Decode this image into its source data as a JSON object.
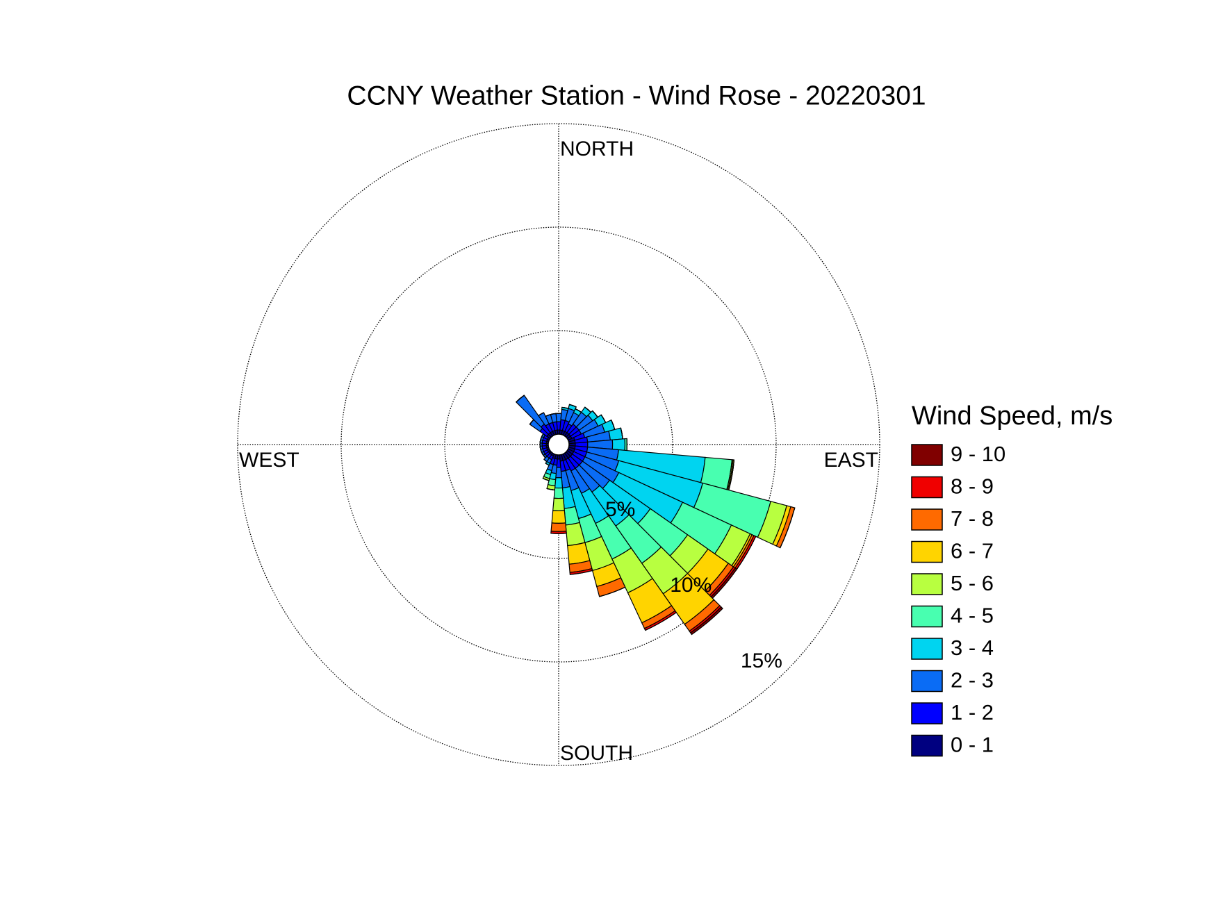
{
  "chart_data": {
    "type": "windrose",
    "title": "CCNY Weather Station - Wind Rose - 20220301",
    "legend_title": "Wind Speed, m/s",
    "direction_labels": {
      "north": "NORTH",
      "east": "EAST",
      "south": "SOUTH",
      "west": "WEST"
    },
    "x": [
      0,
      10,
      20,
      30,
      40,
      50,
      60,
      70,
      80,
      90,
      100,
      110,
      120,
      130,
      140,
      150,
      160,
      170,
      180,
      190,
      200,
      210,
      220,
      230,
      240,
      250,
      260,
      270,
      280,
      290,
      300,
      310,
      320,
      330,
      340,
      350
    ],
    "ylim": [
      0,
      15
    ],
    "yticks": [
      {
        "value": 5,
        "label": "5%"
      },
      {
        "value": 10,
        "label": "10%"
      },
      {
        "value": 15,
        "label": "15%"
      }
    ],
    "grid": true,
    "series": [
      {
        "name": "0 - 1",
        "color": "#000080",
        "values": [
          0.2,
          0.2,
          0.2,
          0.2,
          0.2,
          0.2,
          0.2,
          0.3,
          0.3,
          0.3,
          0.3,
          0.3,
          0.3,
          0.3,
          0.3,
          0.3,
          0.3,
          0.3,
          0.2,
          0.2,
          0.2,
          0.1,
          0.1,
          0.1,
          0.1,
          0.1,
          0.1,
          0.1,
          0.1,
          0.1,
          0.1,
          0.2,
          0.2,
          0.2,
          0.2,
          0.2
        ]
      },
      {
        "name": "1 - 2",
        "color": "#0000ff",
        "values": [
          0.4,
          0.5,
          0.5,
          0.4,
          0.5,
          0.5,
          0.5,
          0.5,
          0.6,
          0.6,
          0.6,
          0.6,
          0.6,
          0.6,
          0.6,
          0.6,
          0.5,
          0.5,
          0.4,
          0.3,
          0.3,
          0.2,
          0.2,
          0.2,
          0.2,
          0.2,
          0.2,
          0.2,
          0.2,
          0.2,
          0.2,
          0.4,
          0.5,
          0.4,
          0.4,
          0.4
        ]
      },
      {
        "name": "2 - 3",
        "color": "#0a6cf5",
        "values": [
          0.4,
          0.5,
          0.6,
          0.6,
          0.7,
          0.8,
          0.9,
          1.0,
          1.1,
          1.2,
          1.5,
          1.6,
          1.8,
          1.6,
          1.4,
          1.2,
          1.0,
          0.8,
          0.5,
          0.4,
          0.3,
          0.2,
          0.2,
          0.1,
          0.1,
          0.1,
          0.1,
          0.1,
          0.1,
          0.1,
          0.1,
          0.6,
          1.7,
          0.6,
          0.4,
          0.4
        ]
      },
      {
        "name": "3 - 4",
        "color": "#00d4f0",
        "values": [
          0,
          0.1,
          0.2,
          0.2,
          0.3,
          0.3,
          0.4,
          0.5,
          0.6,
          0.6,
          4.2,
          4.2,
          3.4,
          2.4,
          2.0,
          1.6,
          1.4,
          1.0,
          0.5,
          0.3,
          0.2,
          0.1,
          0,
          0,
          0,
          0,
          0,
          0,
          0,
          0,
          0,
          0,
          0,
          0,
          0,
          0
        ]
      },
      {
        "name": "4 - 5",
        "color": "#48ffb0",
        "values": [
          0,
          0,
          0,
          0,
          0,
          0,
          0,
          0,
          0,
          0.1,
          1.3,
          3.4,
          2.6,
          2.2,
          2.2,
          1.9,
          1.2,
          0.8,
          0.5,
          0.3,
          0.2,
          0,
          0,
          0,
          0,
          0,
          0,
          0,
          0,
          0,
          0,
          0,
          0,
          0,
          0,
          0
        ]
      },
      {
        "name": "5 - 6",
        "color": "#b8ff40",
        "values": [
          0,
          0,
          0,
          0,
          0,
          0,
          0,
          0,
          0,
          0,
          0.05,
          0.8,
          1.0,
          1.2,
          1.8,
          1.8,
          1.4,
          1.0,
          0.6,
          0.2,
          0.1,
          0,
          0,
          0,
          0,
          0,
          0,
          0,
          0,
          0,
          0,
          0,
          0,
          0,
          0,
          0
        ]
      },
      {
        "name": "6 - 7",
        "color": "#ffd400",
        "values": [
          0,
          0,
          0,
          0,
          0,
          0,
          0,
          0,
          0,
          0,
          0.05,
          0.2,
          0.1,
          1.2,
          1.8,
          1.6,
          0.8,
          0.9,
          0.6,
          0,
          0,
          0,
          0,
          0,
          0,
          0,
          0,
          0,
          0,
          0,
          0,
          0,
          0,
          0,
          0,
          0
        ]
      },
      {
        "name": "7 - 8",
        "color": "#ff6a00",
        "values": [
          0,
          0,
          0,
          0,
          0,
          0,
          0,
          0,
          0,
          0,
          0,
          0.2,
          0.1,
          0.3,
          0.4,
          0.3,
          0.5,
          0.4,
          0.4,
          0,
          0,
          0,
          0,
          0,
          0,
          0,
          0,
          0,
          0,
          0,
          0,
          0,
          0,
          0,
          0,
          0
        ]
      },
      {
        "name": "8 - 9",
        "color": "#f00000",
        "values": [
          0,
          0,
          0,
          0,
          0,
          0,
          0,
          0,
          0,
          0,
          0,
          0,
          0.1,
          0.1,
          0.1,
          0.1,
          0,
          0.1,
          0.1,
          0,
          0,
          0,
          0,
          0,
          0,
          0,
          0,
          0,
          0,
          0,
          0,
          0,
          0,
          0,
          0,
          0
        ]
      },
      {
        "name": "9 - 10",
        "color": "#800000",
        "values": [
          0,
          0,
          0,
          0,
          0,
          0,
          0,
          0,
          0,
          0,
          0,
          0,
          0,
          0.1,
          0.1,
          0,
          0,
          0,
          0,
          0,
          0,
          0,
          0,
          0,
          0,
          0,
          0,
          0,
          0,
          0,
          0,
          0,
          0,
          0,
          0,
          0
        ]
      }
    ]
  }
}
